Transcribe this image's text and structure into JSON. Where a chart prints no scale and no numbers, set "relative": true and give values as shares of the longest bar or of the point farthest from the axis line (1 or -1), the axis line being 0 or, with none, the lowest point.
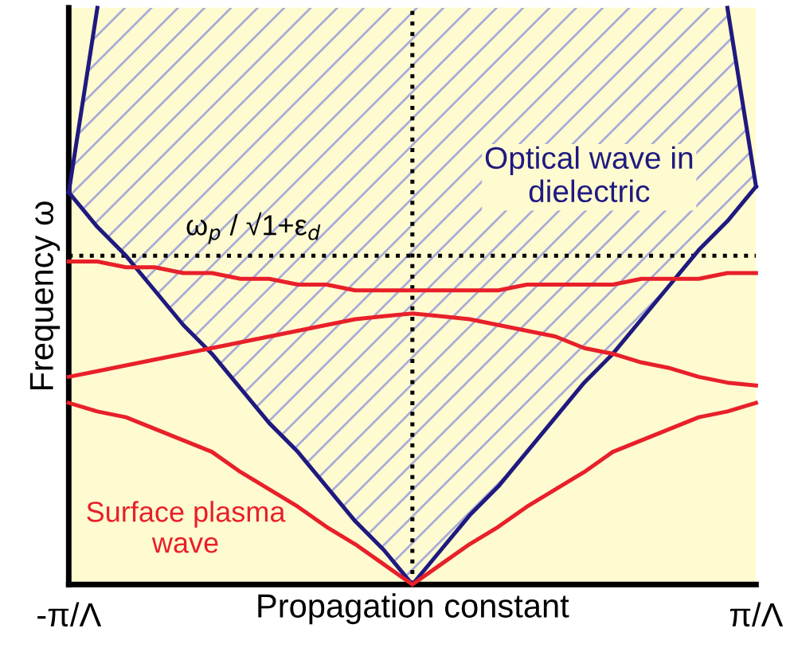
{
  "chart_data": {
    "type": "line",
    "relative": true,
    "xlabel": "Propagation constant",
    "ylabel": "Frequency ω",
    "categories": [
      "-π/Λ",
      null,
      null,
      null,
      null,
      null,
      null,
      null,
      null,
      null,
      null,
      null,
      null,
      null,
      null,
      null,
      null,
      null,
      null,
      null,
      null,
      null,
      null,
      null,
      "π/Λ"
    ],
    "legend": false,
    "ref_lines": [
      {
        "axis": "y",
        "value": 0.57,
        "label": "ω$_{p}$ / √1+ε$_{d}$",
        "line_style": "dotted",
        "color": "#000000"
      }
    ],
    "series": [
      {
        "color": "#1f1a80",
        "values": [
          0.68,
          1.0,
          null,
          null,
          null,
          null,
          null,
          null,
          null,
          null,
          null,
          null,
          null,
          null,
          null,
          null,
          null,
          null,
          null,
          null,
          null,
          null,
          null,
          null,
          null
        ]
      },
      {
        "name": "Optical wave in dielectric",
        "color": "#1f1a80",
        "values": [
          0.68,
          0.62,
          0.57,
          0.51,
          0.45,
          0.4,
          0.34,
          0.28,
          0.23,
          0.17,
          0.11,
          0.06,
          0,
          0.06,
          0.12,
          0.17,
          0.23,
          0.29,
          0.35,
          0.4,
          0.46,
          0.52,
          0.58,
          0.63,
          0.69
        ],
        "lower": [
          0.68,
          0.62,
          0.57,
          0.51,
          0.45,
          0.4,
          0.34,
          0.28,
          0.23,
          0.17,
          0.11,
          0.06,
          0,
          0.06,
          0.12,
          0.17,
          0.23,
          0.29,
          0.35,
          0.4,
          0.46,
          0.52,
          0.58,
          0.63,
          0.69
        ],
        "upper": [
          0.68,
          1.0,
          1.0,
          1.0,
          1.0,
          1.0,
          1.0,
          1.0,
          1.0,
          1.0,
          1.0,
          1.0,
          1.0,
          1.0,
          1.0,
          1.0,
          1.0,
          1.0,
          1.0,
          1.0,
          1.0,
          1.0,
          1.0,
          1.0,
          0.69
        ]
      },
      {
        "color": "#1f1a80",
        "values": [
          null,
          null,
          null,
          null,
          null,
          null,
          null,
          null,
          null,
          null,
          null,
          null,
          null,
          null,
          null,
          null,
          null,
          null,
          null,
          null,
          null,
          null,
          null,
          1.0,
          0.69
        ]
      },
      {
        "color": "#e8202a",
        "values": [
          0.56,
          0.56,
          0.55,
          0.55,
          0.54,
          0.54,
          0.53,
          0.53,
          0.52,
          0.52,
          0.51,
          0.51,
          0.51,
          0.51,
          0.51,
          0.51,
          0.52,
          0.52,
          0.52,
          0.52,
          0.53,
          0.53,
          0.53,
          0.54,
          0.54
        ]
      },
      {
        "color": "#e8202a",
        "values": [
          0.36,
          0.37,
          0.38,
          0.39,
          0.4,
          0.41,
          0.42,
          0.43,
          0.44,
          0.45,
          0.46,
          0.465,
          0.47,
          0.465,
          0.46,
          0.45,
          0.44,
          0.43,
          0.41,
          0.4,
          0.385,
          0.375,
          0.36,
          0.35,
          0.345
        ]
      },
      {
        "name": "Surface plasma wave",
        "color": "#e8202a",
        "values": [
          0.315,
          0.3,
          0.29,
          0.27,
          0.25,
          0.23,
          0.195,
          0.165,
          0.135,
          0.1,
          0.07,
          0.035,
          0,
          0.035,
          0.07,
          0.1,
          0.135,
          0.165,
          0.195,
          0.23,
          0.25,
          0.27,
          0.29,
          0.3,
          0.315
        ]
      }
    ]
  }
}
